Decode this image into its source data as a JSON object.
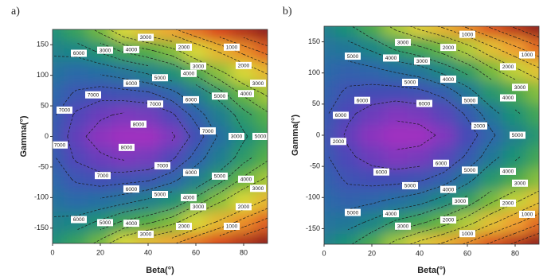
{
  "chart_data": [
    {
      "type": "contour",
      "title": "a)",
      "xlabel": "Beta(°)",
      "ylabel": "Gamma(°)",
      "x": [
        0,
        10,
        20,
        30,
        40,
        50,
        60,
        70,
        80,
        90
      ],
      "y": [
        -175,
        -140,
        -105,
        -70,
        -35,
        0,
        35,
        70,
        105,
        140,
        175
      ],
      "z": [
        [
          5500,
          5000,
          4300,
          3500,
          3000,
          2600,
          2000,
          1500,
          1000,
          500
        ],
        [
          5900,
          5800,
          5400,
          4900,
          4600,
          4200,
          3500,
          2900,
          2300,
          1800
        ],
        [
          6300,
          6500,
          6400,
          6200,
          5900,
          5500,
          4800,
          4100,
          3500,
          2900
        ],
        [
          6600,
          7100,
          7300,
          7200,
          7100,
          6700,
          6000,
          5200,
          4400,
          3900
        ],
        [
          6900,
          7600,
          7900,
          8100,
          8000,
          7600,
          6800,
          6000,
          5200,
          4600
        ],
        [
          7000,
          7800,
          8300,
          8500,
          8500,
          8100,
          7300,
          6400,
          5600,
          5000
        ],
        [
          6900,
          7600,
          7900,
          8100,
          8000,
          7600,
          6800,
          6000,
          5200,
          4600
        ],
        [
          6600,
          7100,
          7300,
          7200,
          7100,
          6700,
          6000,
          5200,
          4400,
          3900
        ],
        [
          6300,
          6500,
          6400,
          6200,
          5900,
          5500,
          4800,
          4100,
          3500,
          2900
        ],
        [
          5900,
          5800,
          5400,
          4900,
          4600,
          4200,
          3500,
          2900,
          2300,
          1800
        ],
        [
          5500,
          5000,
          4300,
          3500,
          3000,
          2600,
          2000,
          1500,
          1000,
          500
        ]
      ],
      "zlim": [
        500,
        8500
      ],
      "colors": [
        "#8b1a1a",
        "#d8401c",
        "#f0a030",
        "#d8d838",
        "#58b040",
        "#1a9078",
        "#2a6aa8",
        "#4848b8",
        "#a030c0"
      ],
      "levels": [
        1000,
        1500,
        2000,
        2500,
        3000,
        3500,
        4000,
        4500,
        5000,
        5500,
        6000,
        6500,
        7000,
        7500,
        8000
      ],
      "xlim": [
        0,
        90
      ],
      "ylim": [
        -175,
        175
      ],
      "xticks": [
        0,
        20,
        40,
        60,
        80
      ],
      "yticks": [
        -150,
        -100,
        -50,
        0,
        50,
        100,
        150
      ],
      "contour_labels": [
        {
          "x": 39,
          "y": 162,
          "value": 3000
        },
        {
          "x": 11,
          "y": 136,
          "value": 6000
        },
        {
          "x": 22,
          "y": 141,
          "value": 3000
        },
        {
          "x": 33,
          "y": 142,
          "value": 4000
        },
        {
          "x": 55,
          "y": 146,
          "value": 2000
        },
        {
          "x": 75,
          "y": 146,
          "value": 1000
        },
        {
          "x": 61,
          "y": 115,
          "value": 3000
        },
        {
          "x": 80,
          "y": 116,
          "value": 2000
        },
        {
          "x": 57,
          "y": 103,
          "value": 4000
        },
        {
          "x": 86,
          "y": 87,
          "value": 3000
        },
        {
          "x": 33,
          "y": 87,
          "value": 6000
        },
        {
          "x": 45,
          "y": 96,
          "value": 5000
        },
        {
          "x": 81,
          "y": 70,
          "value": 4000
        },
        {
          "x": 17,
          "y": 68,
          "value": 7000
        },
        {
          "x": 70,
          "y": 66,
          "value": 5000
        },
        {
          "x": 58,
          "y": 60,
          "value": 6000
        },
        {
          "x": 43,
          "y": 53,
          "value": 7000
        },
        {
          "x": 5,
          "y": 43,
          "value": 7000
        },
        {
          "x": 36,
          "y": 20,
          "value": 8000
        },
        {
          "x": 65,
          "y": 9,
          "value": 7000
        },
        {
          "x": 77,
          "y": 0,
          "value": 3000
        },
        {
          "x": 87,
          "y": 0,
          "value": 5000
        },
        {
          "x": 3,
          "y": -14,
          "value": 7000
        },
        {
          "x": 31,
          "y": -18,
          "value": 8000
        },
        {
          "x": 46,
          "y": -48,
          "value": 7000
        },
        {
          "x": 58,
          "y": -59,
          "value": 6000
        },
        {
          "x": 21,
          "y": -64,
          "value": 7000
        },
        {
          "x": 70,
          "y": -65,
          "value": 5000
        },
        {
          "x": 81,
          "y": -70,
          "value": 4000
        },
        {
          "x": 86,
          "y": -85,
          "value": 3000
        },
        {
          "x": 33,
          "y": -86,
          "value": 6000
        },
        {
          "x": 45,
          "y": -95,
          "value": 5000
        },
        {
          "x": 57,
          "y": -100,
          "value": 4000
        },
        {
          "x": 61,
          "y": -115,
          "value": 3000
        },
        {
          "x": 80,
          "y": -115,
          "value": 2000
        },
        {
          "x": 11,
          "y": -136,
          "value": 6000
        },
        {
          "x": 22,
          "y": -141,
          "value": 5000
        },
        {
          "x": 33,
          "y": -142,
          "value": 4000
        },
        {
          "x": 55,
          "y": -147,
          "value": 2000
        },
        {
          "x": 75,
          "y": -147,
          "value": 1000
        },
        {
          "x": 39,
          "y": -160,
          "value": 3000
        }
      ]
    },
    {
      "type": "contour",
      "title": "b)",
      "xlabel": "Beta(°)",
      "ylabel": "Gamma(°)",
      "x": [
        0,
        10,
        20,
        30,
        40,
        50,
        60,
        70,
        80,
        90
      ],
      "y": [
        -175,
        -140,
        -105,
        -70,
        -35,
        0,
        35,
        70,
        105,
        140,
        175
      ],
      "z": [
        [
          5000,
          4600,
          4000,
          3300,
          2800,
          2400,
          1900,
          1400,
          900,
          400
        ],
        [
          5300,
          5200,
          4900,
          4400,
          4100,
          3700,
          3200,
          2600,
          2100,
          1600
        ],
        [
          5500,
          5700,
          5600,
          5400,
          5200,
          4800,
          4300,
          3600,
          3100,
          2600
        ],
        [
          5700,
          6100,
          6200,
          6200,
          6100,
          5800,
          5200,
          4500,
          4000,
          3500
        ],
        [
          5900,
          6400,
          6700,
          6900,
          6800,
          6500,
          5900,
          5200,
          4600,
          4100
        ],
        [
          6000,
          6600,
          7000,
          7200,
          7200,
          6900,
          6300,
          5600,
          5000,
          4500
        ],
        [
          5900,
          6400,
          6700,
          6900,
          6800,
          6500,
          5900,
          5200,
          4600,
          4100
        ],
        [
          5700,
          6100,
          6200,
          6200,
          6100,
          5800,
          5200,
          4500,
          4000,
          3500
        ],
        [
          5500,
          5700,
          5600,
          5400,
          5200,
          4800,
          4300,
          3600,
          3100,
          2600
        ],
        [
          5300,
          5200,
          4900,
          4400,
          4100,
          3700,
          3200,
          2600,
          2100,
          1600
        ],
        [
          5000,
          4600,
          4000,
          3300,
          2800,
          2400,
          1900,
          1400,
          900,
          400
        ]
      ],
      "zlim": [
        400,
        7200
      ],
      "colors": [
        "#8b1a1a",
        "#d8401c",
        "#f0a030",
        "#d8d838",
        "#58b040",
        "#1a9078",
        "#2a6aa8",
        "#4848b8",
        "#a030c0"
      ],
      "levels": [
        1000,
        1500,
        2000,
        2500,
        3000,
        3500,
        4000,
        4500,
        5000,
        5500,
        6000,
        6500,
        7000
      ],
      "xlim": [
        0,
        90
      ],
      "ylim": [
        -175,
        175
      ],
      "xticks": [
        0,
        20,
        40,
        60,
        80
      ],
      "yticks": [
        -150,
        -100,
        -50,
        0,
        50,
        100,
        150
      ],
      "contour_labels": [
        {
          "x": 60,
          "y": 162,
          "value": 1000
        },
        {
          "x": 33,
          "y": 149,
          "value": 3000
        },
        {
          "x": 52,
          "y": 141,
          "value": 2000
        },
        {
          "x": 28,
          "y": 124,
          "value": 4000
        },
        {
          "x": 12,
          "y": 127,
          "value": 5000
        },
        {
          "x": 85,
          "y": 129,
          "value": 1000
        },
        {
          "x": 41,
          "y": 119,
          "value": 3000
        },
        {
          "x": 77,
          "y": 110,
          "value": 2000
        },
        {
          "x": 52,
          "y": 90,
          "value": 4000
        },
        {
          "x": 36,
          "y": 85,
          "value": 5000
        },
        {
          "x": 82,
          "y": 77,
          "value": 3000
        },
        {
          "x": 77,
          "y": 60,
          "value": 4000
        },
        {
          "x": 61,
          "y": 56,
          "value": 5000
        },
        {
          "x": 16,
          "y": 56,
          "value": 6000
        },
        {
          "x": 42,
          "y": 51,
          "value": 6000
        },
        {
          "x": 7,
          "y": 32,
          "value": 6000
        },
        {
          "x": 65,
          "y": 15,
          "value": 2000
        },
        {
          "x": 6,
          "y": -10,
          "value": 2000
        },
        {
          "x": 81,
          "y": 0,
          "value": 5000
        },
        {
          "x": 49,
          "y": -45,
          "value": 6000
        },
        {
          "x": 24,
          "y": -59,
          "value": 6000
        },
        {
          "x": 61,
          "y": -56,
          "value": 5000
        },
        {
          "x": 77,
          "y": -58,
          "value": 4000
        },
        {
          "x": 82,
          "y": -77,
          "value": 3000
        },
        {
          "x": 36,
          "y": -81,
          "value": 5000
        },
        {
          "x": 52,
          "y": -87,
          "value": 4000
        },
        {
          "x": 57,
          "y": -106,
          "value": 3000
        },
        {
          "x": 77,
          "y": -109,
          "value": 2000
        },
        {
          "x": 12,
          "y": -124,
          "value": 5000
        },
        {
          "x": 28,
          "y": -126,
          "value": 4000
        },
        {
          "x": 85,
          "y": -127,
          "value": 1000
        },
        {
          "x": 52,
          "y": -136,
          "value": 2000
        },
        {
          "x": 33,
          "y": -146,
          "value": 3000
        },
        {
          "x": 60,
          "y": -158,
          "value": 1000
        }
      ]
    }
  ]
}
